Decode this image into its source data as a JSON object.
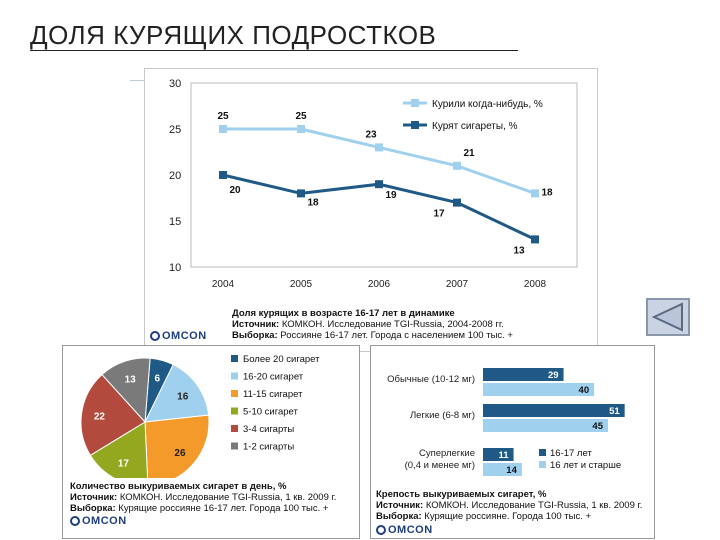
{
  "page": {
    "title": "ДОЛЯ КУРЯЩИХ ПОДРОСТКОВ"
  },
  "line_caption": {
    "line1": "Доля курящих в возрасте 16-17 лет в динамике",
    "src_label": "Источник:",
    "src_text": " КОМКОН. Исследование TGI-Russia, 2004-2008 гг.",
    "sample_label": "Выборка:",
    "sample_text": " Россияне 16-17 лет. Города с населением 100 тыс. +"
  },
  "pie_caption": {
    "line1": "Количество выкуриваемых сигарет в день, %",
    "src_label": "Источник:",
    "src_text": " КОМКОН. Исследование TGI-Russia, 1 кв. 2009 г.",
    "sample_label": "Выборка:",
    "sample_text": " Курящие россияне 16-17 лет. Города 100 тыс. +"
  },
  "bar_caption": {
    "line1": "Крепость выкуриваемых сигарет, %",
    "src_label": "Источник:",
    "src_text": " КОМКОН. Исследование TGI-Russia, 1 кв. 2009 г.",
    "sample_label": "Выборка:",
    "sample_text": " Курящие россияне. Города 100 тыс. +"
  },
  "logo": {
    "text": "OMCON"
  },
  "chart_data": [
    {
      "type": "line",
      "x": [
        2004,
        2005,
        2006,
        2007,
        2008
      ],
      "ylim": [
        10,
        30
      ],
      "yticks": [
        10,
        15,
        20,
        25,
        30
      ],
      "grid": false,
      "legend": "top-right",
      "series": [
        {
          "name": "Курили когда-нибудь, %",
          "values": [
            25,
            25,
            23,
            21,
            18
          ],
          "color": "#9fd0ee"
        },
        {
          "name": "Курят сигареты, %",
          "values": [
            20,
            18,
            19,
            17,
            13
          ],
          "color": "#1f5a86"
        }
      ]
    },
    {
      "type": "pie",
      "legend": "right",
      "slices": [
        {
          "label": "Более 20 сигарет",
          "value": 6,
          "color": "#1f5a86"
        },
        {
          "label": "16-20 сигарет",
          "value": 16,
          "color": "#9fd0ee"
        },
        {
          "label": "11-15 сигарет",
          "value": 26,
          "color": "#f39a2a"
        },
        {
          "label": "5-10 сигарет",
          "value": 17,
          "color": "#93a81f"
        },
        {
          "label": "3-4 сигарты",
          "value": 22,
          "color": "#b24a3e"
        },
        {
          "label": "1-2 сигарты",
          "value": 13,
          "color": "#7a7a7a"
        }
      ]
    },
    {
      "type": "bar",
      "orientation": "horizontal",
      "categories": [
        "Обычные (10-12 мг)",
        "Легкие (6-8 мг)",
        "Суперлегкие (0,4 и менее мг)"
      ],
      "legend": "bottom-right",
      "series": [
        {
          "name": "16-17 лет",
          "values": [
            29,
            51,
            11
          ],
          "color": "#1f5a86"
        },
        {
          "name": "16 лет и старше",
          "values": [
            40,
            45,
            14
          ],
          "color": "#9fd0ee"
        }
      ]
    }
  ]
}
